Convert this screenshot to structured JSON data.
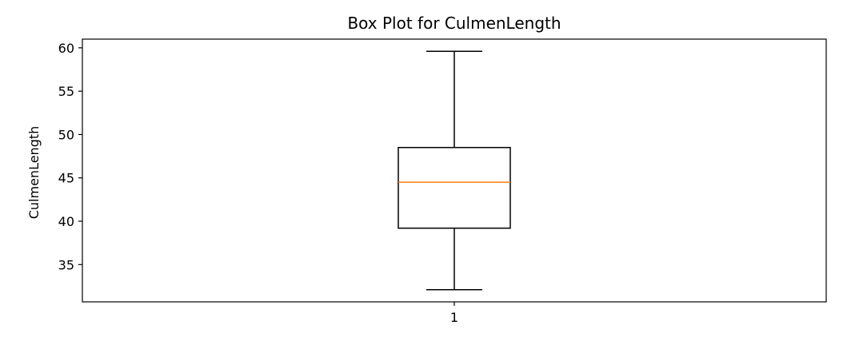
{
  "chart_data": {
    "type": "boxplot",
    "title": "Box Plot for CulmenLength",
    "xlabel": "",
    "ylabel": "CulmenLength",
    "ylim": [
      30.7,
      61.0
    ],
    "y_ticks": [
      35,
      40,
      45,
      50,
      55,
      60
    ],
    "x_ticks": [
      "1"
    ],
    "grid": false,
    "legend": "none",
    "boxes": [
      {
        "category": "1",
        "whisker_low": 32.1,
        "q1": 39.2,
        "median": 44.5,
        "q3": 48.5,
        "whisker_high": 59.6
      }
    ],
    "colors": {
      "box": "#000000",
      "median": "#ff7f0e",
      "axes": "#000000"
    }
  }
}
